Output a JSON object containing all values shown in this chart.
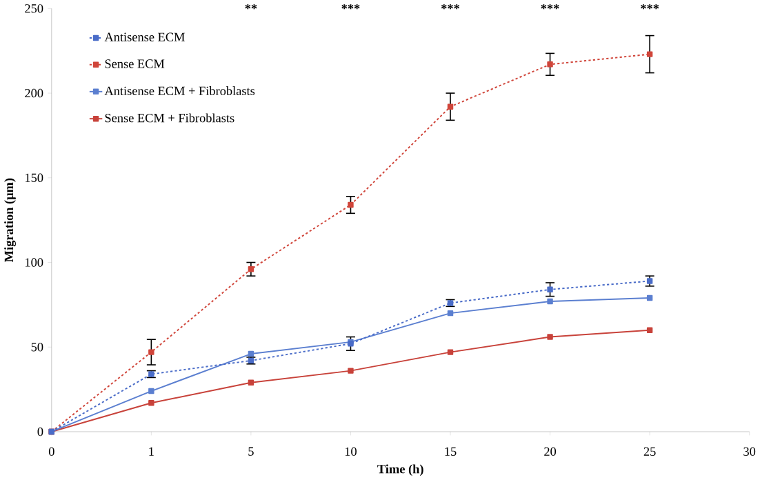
{
  "chart_data": {
    "type": "line",
    "xlabel": "Time (h)",
    "ylabel": "Migration (μm)",
    "categories": [
      "0",
      "1",
      "5",
      "10",
      "15",
      "20",
      "25",
      "30"
    ],
    "ylim": [
      0,
      250
    ],
    "yticks": [
      0,
      50,
      100,
      150,
      200,
      250
    ],
    "legend": "top left",
    "marker": "square",
    "series": [
      {
        "name": "Antisense ECM",
        "color": "#4a6cc8",
        "line_style": "dashed",
        "values": [
          0,
          34,
          42,
          52,
          76,
          84,
          89,
          null
        ],
        "errors": [
          null,
          2,
          2,
          4,
          2,
          4,
          3,
          null
        ]
      },
      {
        "name": "Sense ECM",
        "color": "#d0453a",
        "line_style": "dashed",
        "values": [
          0,
          47,
          96,
          134,
          192,
          217,
          223,
          null
        ],
        "errors": [
          null,
          7.5,
          4,
          5,
          8,
          6.5,
          11,
          null
        ]
      },
      {
        "name": "Antisense ECM + Fibroblasts",
        "color": "#5b7fd0",
        "line_style": "solid",
        "values": [
          0,
          24,
          46,
          53,
          70,
          77,
          79,
          null
        ]
      },
      {
        "name": "Sense ECM + Fibroblasts",
        "color": "#c8423a",
        "line_style": "solid",
        "values": [
          0,
          17,
          29,
          36,
          47,
          56,
          60,
          null
        ]
      }
    ],
    "annotations": [
      "**",
      "***",
      "***",
      "***",
      "***"
    ]
  }
}
